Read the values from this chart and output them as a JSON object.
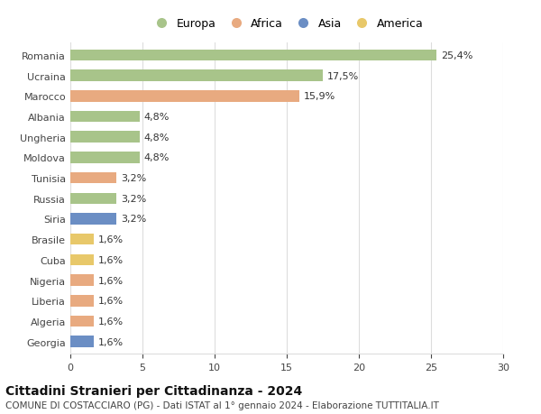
{
  "categories": [
    "Romania",
    "Ucraina",
    "Marocco",
    "Albania",
    "Ungheria",
    "Moldova",
    "Tunisia",
    "Russia",
    "Siria",
    "Brasile",
    "Cuba",
    "Nigeria",
    "Liberia",
    "Algeria",
    "Georgia"
  ],
  "values": [
    25.4,
    17.5,
    15.9,
    4.8,
    4.8,
    4.8,
    3.2,
    3.2,
    3.2,
    1.6,
    1.6,
    1.6,
    1.6,
    1.6,
    1.6
  ],
  "labels": [
    "25,4%",
    "17,5%",
    "15,9%",
    "4,8%",
    "4,8%",
    "4,8%",
    "3,2%",
    "3,2%",
    "3,2%",
    "1,6%",
    "1,6%",
    "1,6%",
    "1,6%",
    "1,6%",
    "1,6%"
  ],
  "colors": [
    "#a8c48a",
    "#a8c48a",
    "#e8aa80",
    "#a8c48a",
    "#a8c48a",
    "#a8c48a",
    "#e8aa80",
    "#a8c48a",
    "#6b8ec4",
    "#e8c86a",
    "#e8c86a",
    "#e8aa80",
    "#e8aa80",
    "#e8aa80",
    "#6b8ec4"
  ],
  "legend": [
    {
      "label": "Europa",
      "color": "#a8c48a"
    },
    {
      "label": "Africa",
      "color": "#e8aa80"
    },
    {
      "label": "Asia",
      "color": "#6b8ec4"
    },
    {
      "label": "America",
      "color": "#e8c86a"
    }
  ],
  "xlim": [
    0,
    30
  ],
  "xticks": [
    0,
    5,
    10,
    15,
    20,
    25,
    30
  ],
  "title": "Cittadini Stranieri per Cittadinanza - 2024",
  "subtitle": "COMUNE DI COSTACCIARO (PG) - Dati ISTAT al 1° gennaio 2024 - Elaborazione TUTTITALIA.IT",
  "background_color": "#ffffff",
  "grid_color": "#dddddd",
  "bar_height": 0.55,
  "title_fontsize": 10,
  "subtitle_fontsize": 7.5,
  "label_fontsize": 8,
  "tick_fontsize": 8,
  "legend_fontsize": 9
}
